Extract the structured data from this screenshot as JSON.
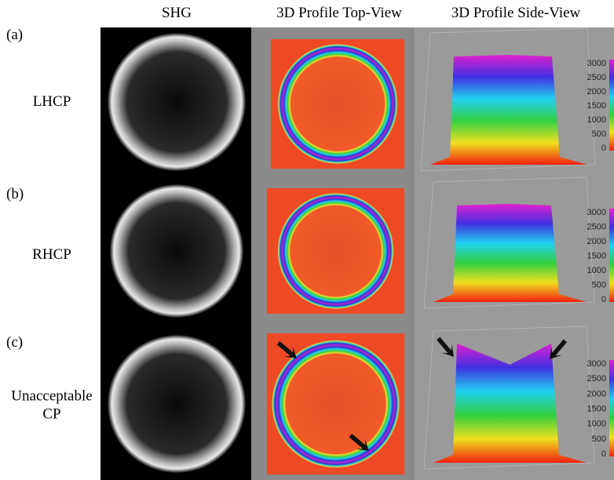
{
  "header": {
    "columns": [
      "SHG",
      "3D Profile Top-View",
      "3D Profile Side-View"
    ]
  },
  "rows": [
    {
      "tag": "(a)",
      "label_lines": [
        "LHCP"
      ],
      "axis_ticks": [
        "3000",
        "2500",
        "2000",
        "1500",
        "1000",
        "500",
        "0"
      ]
    },
    {
      "tag": "(b)",
      "label_lines": [
        "RHCP"
      ],
      "axis_ticks": [
        "3000",
        "2500",
        "2000",
        "1500",
        "1000",
        "500",
        "0"
      ]
    },
    {
      "tag": "(c)",
      "label_lines": [
        "Unacceptable",
        "CP"
      ],
      "axis_ticks": [
        "3000",
        "2500",
        "2000",
        "1500",
        "1000",
        "500",
        "0"
      ]
    }
  ]
}
